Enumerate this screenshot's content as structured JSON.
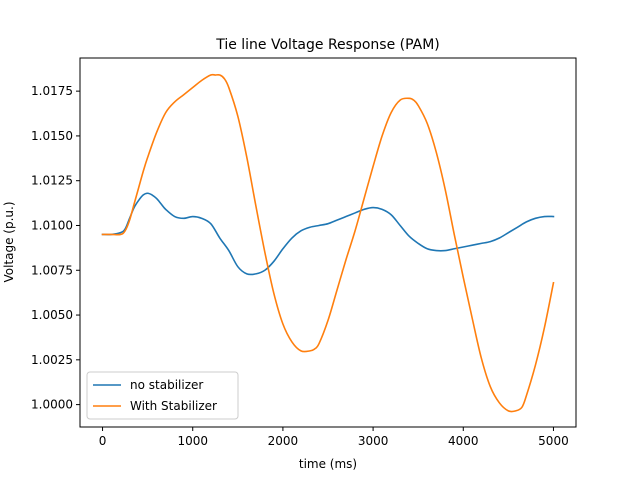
{
  "chart_data": {
    "type": "line",
    "title": "Tie line Voltage Response (PAM)",
    "xlabel": "time (ms)",
    "ylabel": "Voltage (p.u.)",
    "xlim": [
      -250,
      5250
    ],
    "ylim": [
      0.99875,
      1.01935
    ],
    "xticks": [
      0,
      1000,
      2000,
      3000,
      4000,
      5000
    ],
    "xtick_labels": [
      "0",
      "1000",
      "2000",
      "3000",
      "4000",
      "5000"
    ],
    "yticks": [
      1.0,
      1.0025,
      1.005,
      1.0075,
      1.01,
      1.0125,
      1.015,
      1.0175
    ],
    "ytick_labels": [
      "1.0000",
      "1.0025",
      "1.0050",
      "1.0075",
      "1.0100",
      "1.0125",
      "1.0150",
      "1.0175"
    ],
    "grid": false,
    "legend_position": "lower-left",
    "series": [
      {
        "name": "no stabilizer",
        "color": "#1f77b4",
        "x": [
          0,
          100,
          200,
          250,
          300,
          350,
          400,
          450,
          500,
          550,
          600,
          650,
          700,
          800,
          900,
          1000,
          1100,
          1200,
          1300,
          1400,
          1500,
          1600,
          1700,
          1800,
          1900,
          2000,
          2100,
          2200,
          2300,
          2400,
          2500,
          2600,
          2700,
          2800,
          2900,
          3000,
          3100,
          3200,
          3300,
          3400,
          3500,
          3600,
          3700,
          3800,
          3900,
          4000,
          4100,
          4200,
          4300,
          4400,
          4500,
          4600,
          4700,
          4800,
          4900,
          5000
        ],
        "y": [
          1.0095,
          1.0095,
          1.0096,
          1.0098,
          1.0104,
          1.011,
          1.0114,
          1.0117,
          1.0118,
          1.0117,
          1.0115,
          1.0112,
          1.0109,
          1.0105,
          1.0104,
          1.0105,
          1.0104,
          1.0101,
          1.0093,
          1.0086,
          1.0077,
          1.0073,
          1.0073,
          1.0075,
          1.008,
          1.0087,
          1.0093,
          1.0097,
          1.0099,
          1.01,
          1.0101,
          1.0103,
          1.0105,
          1.0107,
          1.0109,
          1.011,
          1.0109,
          1.0106,
          1.01,
          1.0094,
          1.009,
          1.0087,
          1.0086,
          1.0086,
          1.0087,
          1.0088,
          1.0089,
          1.009,
          1.0091,
          1.0093,
          1.0096,
          1.0099,
          1.0102,
          1.0104,
          1.0105,
          1.0105
        ]
      },
      {
        "name": "With Stabilizer",
        "color": "#ff7f0e",
        "x": [
          0,
          100,
          200,
          250,
          300,
          350,
          400,
          450,
          500,
          600,
          700,
          800,
          900,
          1000,
          1100,
          1200,
          1250,
          1300,
          1350,
          1400,
          1500,
          1600,
          1700,
          1800,
          1900,
          2000,
          2100,
          2200,
          2300,
          2350,
          2400,
          2500,
          2600,
          2700,
          2800,
          2900,
          3000,
          3100,
          3200,
          3300,
          3400,
          3450,
          3500,
          3600,
          3700,
          3800,
          3900,
          4000,
          4100,
          4200,
          4300,
          4400,
          4500,
          4580,
          4650,
          4700,
          4800,
          4900,
          5000
        ],
        "y": [
          1.0095,
          1.0095,
          1.0095,
          1.0097,
          1.0103,
          1.0112,
          1.0121,
          1.013,
          1.0138,
          1.0152,
          1.0163,
          1.0169,
          1.0173,
          1.0177,
          1.0181,
          1.0184,
          1.0184,
          1.0184,
          1.0182,
          1.0177,
          1.0161,
          1.0138,
          1.0111,
          1.0085,
          1.0062,
          1.0045,
          1.0035,
          1.003,
          1.003,
          1.0031,
          1.0034,
          1.0047,
          1.0064,
          1.0081,
          1.0097,
          1.0115,
          1.0133,
          1.015,
          1.0163,
          1.017,
          1.0171,
          1.017,
          1.0167,
          1.0157,
          1.0141,
          1.012,
          1.0095,
          1.0071,
          1.0048,
          1.0026,
          1.001,
          1.0001,
          0.99965,
          0.99965,
          0.99985,
          1.0005,
          1.0022,
          1.0043,
          1.0068
        ]
      }
    ]
  }
}
